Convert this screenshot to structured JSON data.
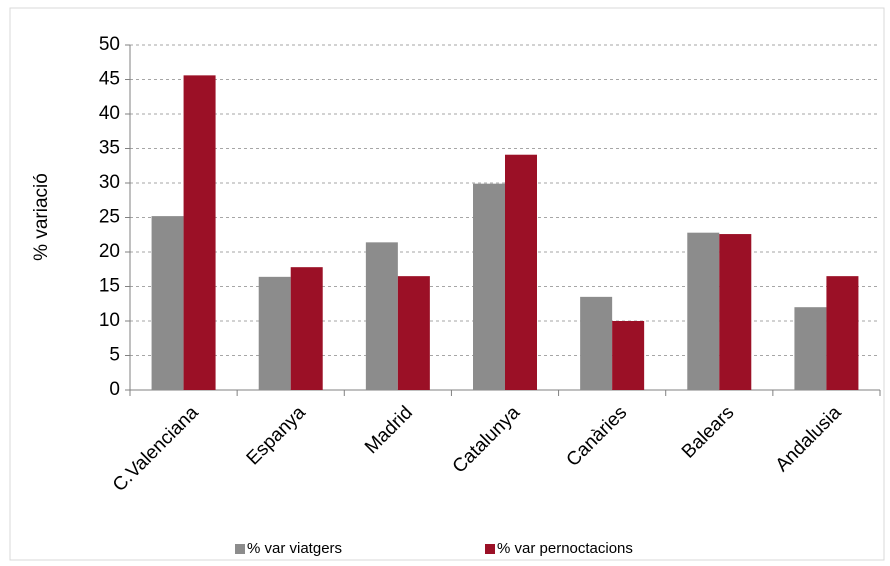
{
  "chart_data": {
    "type": "bar",
    "y_label": "% variació",
    "categories": [
      "C.Valenciana",
      "Espanya",
      "Madrid",
      "Catalunya",
      "Canàries",
      "Balears",
      "Andalusia"
    ],
    "series": [
      {
        "name": "% var viatgers",
        "color": "#8c8c8c",
        "values": [
          25.2,
          16.4,
          21.4,
          29.9,
          13.5,
          22.8,
          12.0
        ]
      },
      {
        "name": "% var pernoctacions",
        "color": "#9b1026",
        "values": [
          45.6,
          17.8,
          16.5,
          34.1,
          10.0,
          22.6,
          16.5
        ]
      }
    ],
    "ylim": [
      0,
      50
    ],
    "yticks": [
      0,
      5,
      10,
      15,
      20,
      25,
      30,
      35,
      40,
      45,
      50
    ],
    "grid": true,
    "legend": "bottom"
  }
}
